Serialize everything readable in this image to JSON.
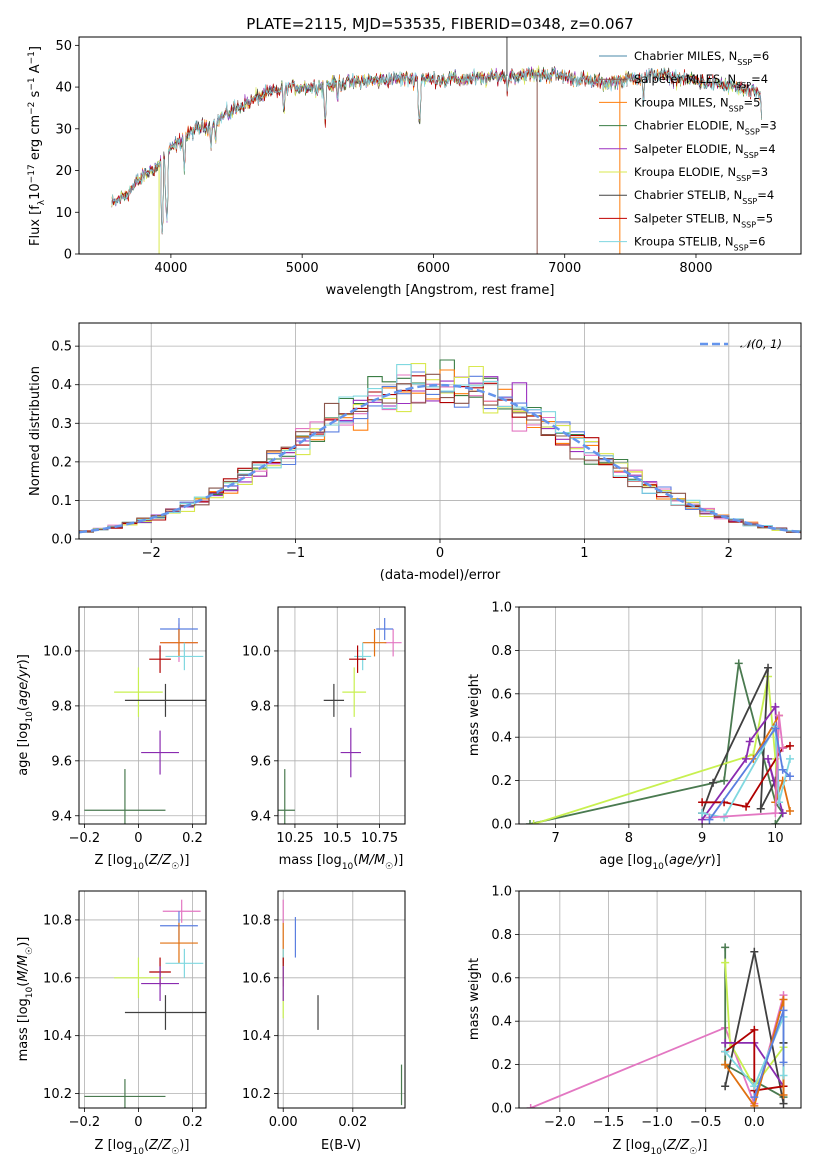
{
  "title": "PLATE=2115, MJD=53535, FIBERID=0348, z=0.067",
  "colors": {
    "chabrier_miles": "#4a8aa8",
    "salpeter_miles": "#8c564b",
    "kroupa_miles": "#ff7f0e",
    "chabrier_elodie": "#3a7d44",
    "salpeter_elodie": "#9b30c0",
    "kroupa_elodie": "#d9e84f",
    "chabrier_stelib": "#444444",
    "salpeter_stelib": "#c00000",
    "kroupa_stelib": "#7fd6e0",
    "gauss": "#6495ed",
    "pink": "#e377c2",
    "blue": "#5b7fe0",
    "orange": "#e07010",
    "green": "#4a7a50",
    "purple": "#8a2bb0",
    "lime": "#c8f050",
    "black": "#404040",
    "red": "#b00000",
    "cyan": "#80d8e0"
  },
  "chart_data": [
    {
      "type": "line",
      "name": "spectrum",
      "title": "PLATE=2115, MJD=53535, FIBERID=0348, z=0.067",
      "xlabel": "wavelength [Angstrom, rest frame]",
      "ylabel": "Flux [fλ10⁻¹⁷ erg cm⁻² s⁻¹ A⁻¹]",
      "xlim": [
        3300,
        8800
      ],
      "ylim": [
        0,
        52
      ],
      "xticks": [
        4000,
        5000,
        6000,
        7000,
        8000
      ],
      "yticks": [
        0,
        10,
        20,
        30,
        40,
        50
      ],
      "grid": false,
      "legend_position": "top-right",
      "series": [
        {
          "name": "Chabrier MILES, N_SSP=6",
          "color_key": "chabrier_miles"
        },
        {
          "name": "Salpeter MILES, N_SSP=4",
          "color_key": "salpeter_miles"
        },
        {
          "name": "Kroupa MILES, N_SSP=5",
          "color_key": "kroupa_miles"
        },
        {
          "name": "Chabrier ELODIE, N_SSP=3",
          "color_key": "chabrier_elodie"
        },
        {
          "name": "Salpeter ELODIE, N_SSP=4",
          "color_key": "salpeter_elodie"
        },
        {
          "name": "Kroupa ELODIE, N_SSP=3",
          "color_key": "kroupa_elodie"
        },
        {
          "name": "Chabrier STELIB, N_SSP=4",
          "color_key": "chabrier_stelib"
        },
        {
          "name": "Salpeter STELIB, N_SSP=5",
          "color_key": "salpeter_stelib"
        },
        {
          "name": "Kroupa STELIB, N_SSP=6",
          "color_key": "kroupa_stelib"
        }
      ],
      "continuum": {
        "x": [
          3550,
          3650,
          3800,
          3900,
          4000,
          4100,
          4200,
          4300,
          4400,
          4500,
          4700,
          4900,
          5100,
          5300,
          5500,
          5700,
          5900,
          6100,
          6300,
          6500,
          6700,
          6900,
          7100,
          7300,
          7500,
          7700,
          7900,
          8100,
          8300,
          8500
        ],
        "y": [
          12,
          14,
          19,
          21,
          25,
          28,
          30,
          31,
          33,
          35,
          38,
          40,
          40,
          41,
          41.5,
          42,
          42,
          42,
          42,
          42.5,
          43,
          43,
          42,
          41,
          42,
          43,
          42,
          41,
          40,
          38
        ]
      },
      "absorption_lines": [
        {
          "x": 3934,
          "y": 5
        },
        {
          "x": 3969,
          "y": 8
        },
        {
          "x": 4102,
          "y": 20
        },
        {
          "x": 4305,
          "y": 25
        },
        {
          "x": 4340,
          "y": 26
        },
        {
          "x": 4861,
          "y": 33
        },
        {
          "x": 5175,
          "y": 31
        },
        {
          "x": 5270,
          "y": 36
        },
        {
          "x": 5893,
          "y": 30
        },
        {
          "x": 6563,
          "y": 38
        },
        {
          "x": 7600,
          "y": 36
        },
        {
          "x": 8500,
          "y": 33
        }
      ],
      "spikes": [
        {
          "x": 3910,
          "y": 0,
          "color_key": "kroupa_elodie"
        },
        {
          "x": 6560,
          "y": 52,
          "color_key": "chabrier_stelib"
        },
        {
          "x": 6790,
          "y": 0,
          "color_key": "salpeter_miles"
        },
        {
          "x": 7420,
          "y": 0,
          "color_key": "kroupa_miles"
        }
      ]
    },
    {
      "type": "line",
      "name": "residual-histogram",
      "xlabel": "(data-model)/error",
      "ylabel": "Normed distribution",
      "xlim": [
        -2.5,
        2.5
      ],
      "ylim": [
        0,
        0.56
      ],
      "xticks": [
        -2,
        -1,
        0,
        1,
        2
      ],
      "yticks": [
        0.0,
        0.1,
        0.2,
        0.3,
        0.4,
        0.5
      ],
      "grid": true,
      "legend": "𝒩(0, 1)",
      "legend_position": "top-right",
      "bin_width": 0.1,
      "histogram_colors": [
        "chabrier_elodie",
        "kroupa_miles",
        "salpeter_elodie",
        "pink",
        "blue",
        "kroupa_elodie",
        "red",
        "cyan",
        "salpeter_miles"
      ]
    },
    {
      "type": "scatter",
      "name": "age-vs-Z",
      "xlabel": "Z [log10(Z/Z☉)]",
      "ylabel": "age  [log10(age/yr)]",
      "xlim": [
        -0.22,
        0.25
      ],
      "ylim": [
        9.37,
        10.16
      ],
      "xticks": [
        -0.2,
        0.0,
        0.2
      ],
      "yticks": [
        9.4,
        9.6,
        9.8,
        10.0
      ],
      "grid": true,
      "points": [
        {
          "x": 0.15,
          "y": 10.03,
          "xerr": 0.07,
          "yerr": 0.07,
          "color_key": "pink"
        },
        {
          "x": 0.15,
          "y": 10.08,
          "xerr": 0.07,
          "yerr": 0.04,
          "color_key": "blue"
        },
        {
          "x": 0.15,
          "y": 10.03,
          "xerr": 0.07,
          "yerr": 0.05,
          "color_key": "orange"
        },
        {
          "x": 0.17,
          "y": 9.98,
          "xerr": 0.07,
          "yerr": 0.05,
          "color_key": "cyan"
        },
        {
          "x": 0.08,
          "y": 9.97,
          "xerr": 0.04,
          "yerr": 0.05,
          "color_key": "red"
        },
        {
          "x": 0.0,
          "y": 9.85,
          "xerr": 0.09,
          "yerr": 0.09,
          "color_key": "lime"
        },
        {
          "x": 0.1,
          "y": 9.82,
          "xerr": 0.15,
          "yerr": 0.06,
          "color_key": "black"
        },
        {
          "x": 0.08,
          "y": 9.63,
          "xerr": 0.07,
          "yerr": 0.08,
          "color_key": "purple"
        },
        {
          "x": -0.05,
          "y": 9.42,
          "xerr": 0.15,
          "yerr": 0.15,
          "color_key": "green"
        }
      ]
    },
    {
      "type": "scatter",
      "name": "age-vs-mass",
      "xlabel": "mass [log10(M/M☉)]",
      "ylabel": "",
      "xlim": [
        10.15,
        10.9
      ],
      "ylim": [
        9.37,
        10.16
      ],
      "xticks": [
        10.25,
        10.5,
        10.75
      ],
      "yticks": [
        9.4,
        9.6,
        9.8,
        10.0
      ],
      "grid": true,
      "points": [
        {
          "x": 10.83,
          "y": 10.03,
          "xerr": 0.05,
          "yerr": 0.05,
          "color_key": "pink"
        },
        {
          "x": 10.78,
          "y": 10.08,
          "xerr": 0.05,
          "yerr": 0.04,
          "color_key": "blue"
        },
        {
          "x": 10.72,
          "y": 10.03,
          "xerr": 0.07,
          "yerr": 0.05,
          "color_key": "orange"
        },
        {
          "x": 10.65,
          "y": 9.98,
          "xerr": 0.05,
          "yerr": 0.05,
          "color_key": "cyan"
        },
        {
          "x": 10.62,
          "y": 9.97,
          "xerr": 0.05,
          "yerr": 0.05,
          "color_key": "red"
        },
        {
          "x": 10.6,
          "y": 9.85,
          "xerr": 0.07,
          "yerr": 0.09,
          "color_key": "lime"
        },
        {
          "x": 10.48,
          "y": 9.82,
          "xerr": 0.06,
          "yerr": 0.06,
          "color_key": "black"
        },
        {
          "x": 10.58,
          "y": 9.63,
          "xerr": 0.06,
          "yerr": 0.09,
          "color_key": "purple"
        },
        {
          "x": 10.19,
          "y": 9.42,
          "xerr": 0.06,
          "yerr": 0.15,
          "color_key": "green"
        }
      ]
    },
    {
      "type": "line",
      "name": "mass-weight-vs-age",
      "xlabel": "age  [log10(age/yr)]",
      "ylabel": "mass weight",
      "xlim": [
        6.5,
        10.35
      ],
      "ylim": [
        0,
        1.0
      ],
      "xticks": [
        7,
        8,
        9,
        10
      ],
      "yticks": [
        0.0,
        0.2,
        0.4,
        0.6,
        0.8,
        1.0
      ],
      "grid": true,
      "series": [
        {
          "color_key": "green",
          "x": [
            6.65,
            9.3,
            9.5,
            10.0,
            10.1,
            10.0
          ],
          "y": [
            0.0,
            0.2,
            0.74,
            0.1,
            0.05,
            0.0
          ]
        },
        {
          "color_key": "lime",
          "x": [
            6.7,
            9.7,
            9.9,
            10.0,
            10.05
          ],
          "y": [
            0.0,
            0.32,
            0.68,
            0.3,
            0.1
          ]
        },
        {
          "color_key": "black",
          "x": [
            9.0,
            9.15,
            9.9,
            9.8,
            10.0
          ],
          "y": [
            0.05,
            0.19,
            0.72,
            0.07,
            0.2
          ]
        },
        {
          "color_key": "purple",
          "x": [
            9.0,
            9.6,
            9.65,
            10.0,
            10.05,
            9.9,
            10.1
          ],
          "y": [
            0.02,
            0.3,
            0.38,
            0.54,
            0.1,
            0.3,
            0.05
          ]
        },
        {
          "color_key": "red",
          "x": [
            9.0,
            9.3,
            9.6,
            10.1,
            10.2
          ],
          "y": [
            0.1,
            0.1,
            0.08,
            0.35,
            0.36
          ]
        },
        {
          "color_key": "orange",
          "x": [
            9.7,
            10.05,
            10.0,
            10.1,
            10.2
          ],
          "y": [
            0.3,
            0.5,
            0.1,
            0.2,
            0.06
          ]
        },
        {
          "color_key": "cyan",
          "x": [
            9.0,
            9.3,
            10.0,
            10.05,
            10.2
          ],
          "y": [
            0.05,
            0.03,
            0.45,
            0.1,
            0.3
          ]
        },
        {
          "color_key": "pink",
          "x": [
            9.1,
            10.0,
            10.05,
            10.1
          ],
          "y": [
            0.03,
            0.05,
            0.5,
            0.35
          ]
        },
        {
          "color_key": "blue",
          "x": [
            9.1,
            10.0,
            10.1,
            10.2
          ],
          "y": [
            0.02,
            0.44,
            0.25,
            0.22
          ]
        }
      ]
    },
    {
      "type": "scatter",
      "name": "mass-vs-Z",
      "xlabel": "Z [log10(Z/Z☉)]",
      "ylabel": "mass [log10(M/M☉)]",
      "xlim": [
        -0.22,
        0.25
      ],
      "ylim": [
        10.15,
        10.9
      ],
      "xticks": [
        -0.2,
        0.0,
        0.2
      ],
      "yticks": [
        10.2,
        10.4,
        10.6,
        10.8
      ],
      "grid": true,
      "points": [
        {
          "x": 0.16,
          "y": 10.83,
          "xerr": 0.07,
          "yerr": 0.04,
          "color_key": "pink"
        },
        {
          "x": 0.15,
          "y": 10.78,
          "xerr": 0.07,
          "yerr": 0.05,
          "color_key": "blue"
        },
        {
          "x": 0.15,
          "y": 10.72,
          "xerr": 0.07,
          "yerr": 0.07,
          "color_key": "orange"
        },
        {
          "x": 0.17,
          "y": 10.65,
          "xerr": 0.07,
          "yerr": 0.05,
          "color_key": "cyan"
        },
        {
          "x": 0.08,
          "y": 10.62,
          "xerr": 0.04,
          "yerr": 0.05,
          "color_key": "red"
        },
        {
          "x": 0.0,
          "y": 10.6,
          "xerr": 0.09,
          "yerr": 0.07,
          "color_key": "lime"
        },
        {
          "x": 0.1,
          "y": 10.48,
          "xerr": 0.15,
          "yerr": 0.06,
          "color_key": "black"
        },
        {
          "x": 0.08,
          "y": 10.58,
          "xerr": 0.07,
          "yerr": 0.06,
          "color_key": "purple"
        },
        {
          "x": -0.05,
          "y": 10.19,
          "xerr": 0.15,
          "yerr": 0.06,
          "color_key": "green"
        }
      ]
    },
    {
      "type": "scatter",
      "name": "mass-vs-ebv",
      "xlabel": "E(B-V)",
      "ylabel": "",
      "xlim": [
        -0.0015,
        0.035
      ],
      "ylim": [
        10.15,
        10.9
      ],
      "xticks": [
        0.0,
        0.02
      ],
      "yticks": [
        10.2,
        10.4,
        10.6,
        10.8
      ],
      "grid": true,
      "points": [
        {
          "x": 0.0,
          "y": 10.83,
          "yerr": 0.04,
          "color_key": "pink"
        },
        {
          "x": 0.0035,
          "y": 10.74,
          "yerr": 0.07,
          "color_key": "blue"
        },
        {
          "x": 0.0,
          "y": 10.72,
          "yerr": 0.07,
          "color_key": "orange"
        },
        {
          "x": 0.0,
          "y": 10.65,
          "yerr": 0.05,
          "color_key": "cyan"
        },
        {
          "x": 0.0,
          "y": 10.62,
          "yerr": 0.05,
          "color_key": "red"
        },
        {
          "x": 0.0,
          "y": 10.55,
          "yerr": 0.09,
          "color_key": "lime"
        },
        {
          "x": 0.01,
          "y": 10.48,
          "yerr": 0.06,
          "color_key": "black"
        },
        {
          "x": 0.0,
          "y": 10.58,
          "yerr": 0.06,
          "color_key": "purple"
        },
        {
          "x": 0.034,
          "y": 10.23,
          "yerr": 0.07,
          "color_key": "green"
        }
      ]
    },
    {
      "type": "line",
      "name": "mass-weight-vs-Z",
      "xlabel": "Z [log10(Z/Z☉)]",
      "ylabel": "mass weight",
      "xlim": [
        -2.42,
        0.48
      ],
      "ylim": [
        0,
        1.0
      ],
      "xticks": [
        -2.0,
        -1.5,
        -1.0,
        -0.5,
        0.0
      ],
      "yticks": [
        0.0,
        0.2,
        0.4,
        0.6,
        0.8,
        1.0
      ],
      "grid": true,
      "series": [
        {
          "color_key": "pink",
          "x": [
            -2.3,
            -0.3,
            0.0,
            0.3,
            0.3
          ],
          "y": [
            0.0,
            0.37,
            0.02,
            0.52,
            0.3
          ]
        },
        {
          "color_key": "green",
          "x": [
            -0.3,
            -0.3,
            0.3,
            0.3
          ],
          "y": [
            0.74,
            0.2,
            0.05,
            0.3
          ]
        },
        {
          "color_key": "lime",
          "x": [
            -0.3,
            -0.25,
            0.0,
            0.3
          ],
          "y": [
            0.67,
            0.3,
            0.1,
            0.28
          ]
        },
        {
          "color_key": "black",
          "x": [
            -0.3,
            0.0,
            0.3,
            0.3
          ],
          "y": [
            0.1,
            0.72,
            0.02,
            0.3
          ]
        },
        {
          "color_key": "purple",
          "x": [
            -0.3,
            0.0,
            0.3
          ],
          "y": [
            0.3,
            0.3,
            0.1
          ]
        },
        {
          "color_key": "red",
          "x": [
            -0.3,
            0.0,
            0.0,
            0.3
          ],
          "y": [
            0.26,
            0.36,
            0.08,
            0.1
          ]
        },
        {
          "color_key": "orange",
          "x": [
            -0.3,
            0.0,
            0.3,
            0.3
          ],
          "y": [
            0.2,
            0.01,
            0.5,
            0.06
          ]
        },
        {
          "color_key": "cyan",
          "x": [
            -0.3,
            0.0,
            0.3,
            0.3
          ],
          "y": [
            0.26,
            0.1,
            0.42,
            0.15
          ]
        },
        {
          "color_key": "blue",
          "x": [
            0.0,
            0.3,
            0.3
          ],
          "y": [
            0.05,
            0.45,
            0.21
          ]
        }
      ]
    }
  ]
}
